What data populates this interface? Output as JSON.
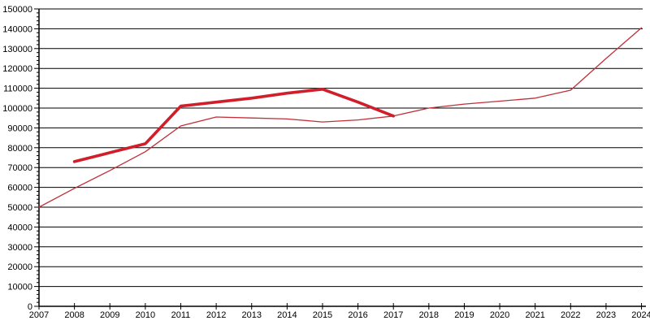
{
  "chart_data": {
    "type": "line",
    "title": "",
    "xlabel": "",
    "ylabel": "",
    "xlim": [
      2007,
      2024
    ],
    "ylim": [
      0,
      150000
    ],
    "y_major_step": 10000,
    "y_minor_step": 2000,
    "grid": "horizontal-major-gridlines",
    "legend_position": "none",
    "background_color": "#ffffff",
    "axis_color": "#000000",
    "x_tick_labels": [
      "2007",
      "2008",
      "2009",
      "2010",
      "2011",
      "2012",
      "2013",
      "2014",
      "2015",
      "2016",
      "2017",
      "2018",
      "2019",
      "2020",
      "2021",
      "2022",
      "2023",
      "2024"
    ],
    "y_tick_labels": [
      "0",
      "10000",
      "20000",
      "30000",
      "40000",
      "50000",
      "60000",
      "70000",
      "80000",
      "90000",
      "100000",
      "110000",
      "120000",
      "130000",
      "140000",
      "150000"
    ],
    "series": [
      {
        "name": "thin-red-line",
        "color": "#c03038",
        "stroke_width": 1.3,
        "x": [
          2007,
          2008,
          2009,
          2010,
          2011,
          2012,
          2013,
          2014,
          2015,
          2016,
          2017,
          2018,
          2019,
          2020,
          2021,
          2022,
          2023,
          2024
        ],
        "values": [
          50000,
          59500,
          68500,
          78000,
          91000,
          95500,
          95000,
          94500,
          93000,
          94000,
          96000,
          100000,
          102000,
          103500,
          105000,
          109000,
          125000,
          140500
        ]
      },
      {
        "name": "bold-red-line",
        "color": "#d01f2a",
        "stroke_width": 3.6,
        "x": [
          2008,
          2009,
          2010,
          2011,
          2012,
          2013,
          2014,
          2015,
          2016,
          2017
        ],
        "values": [
          73000,
          77500,
          82000,
          101000,
          103000,
          105000,
          107500,
          109500,
          103000,
          96000
        ]
      }
    ]
  }
}
